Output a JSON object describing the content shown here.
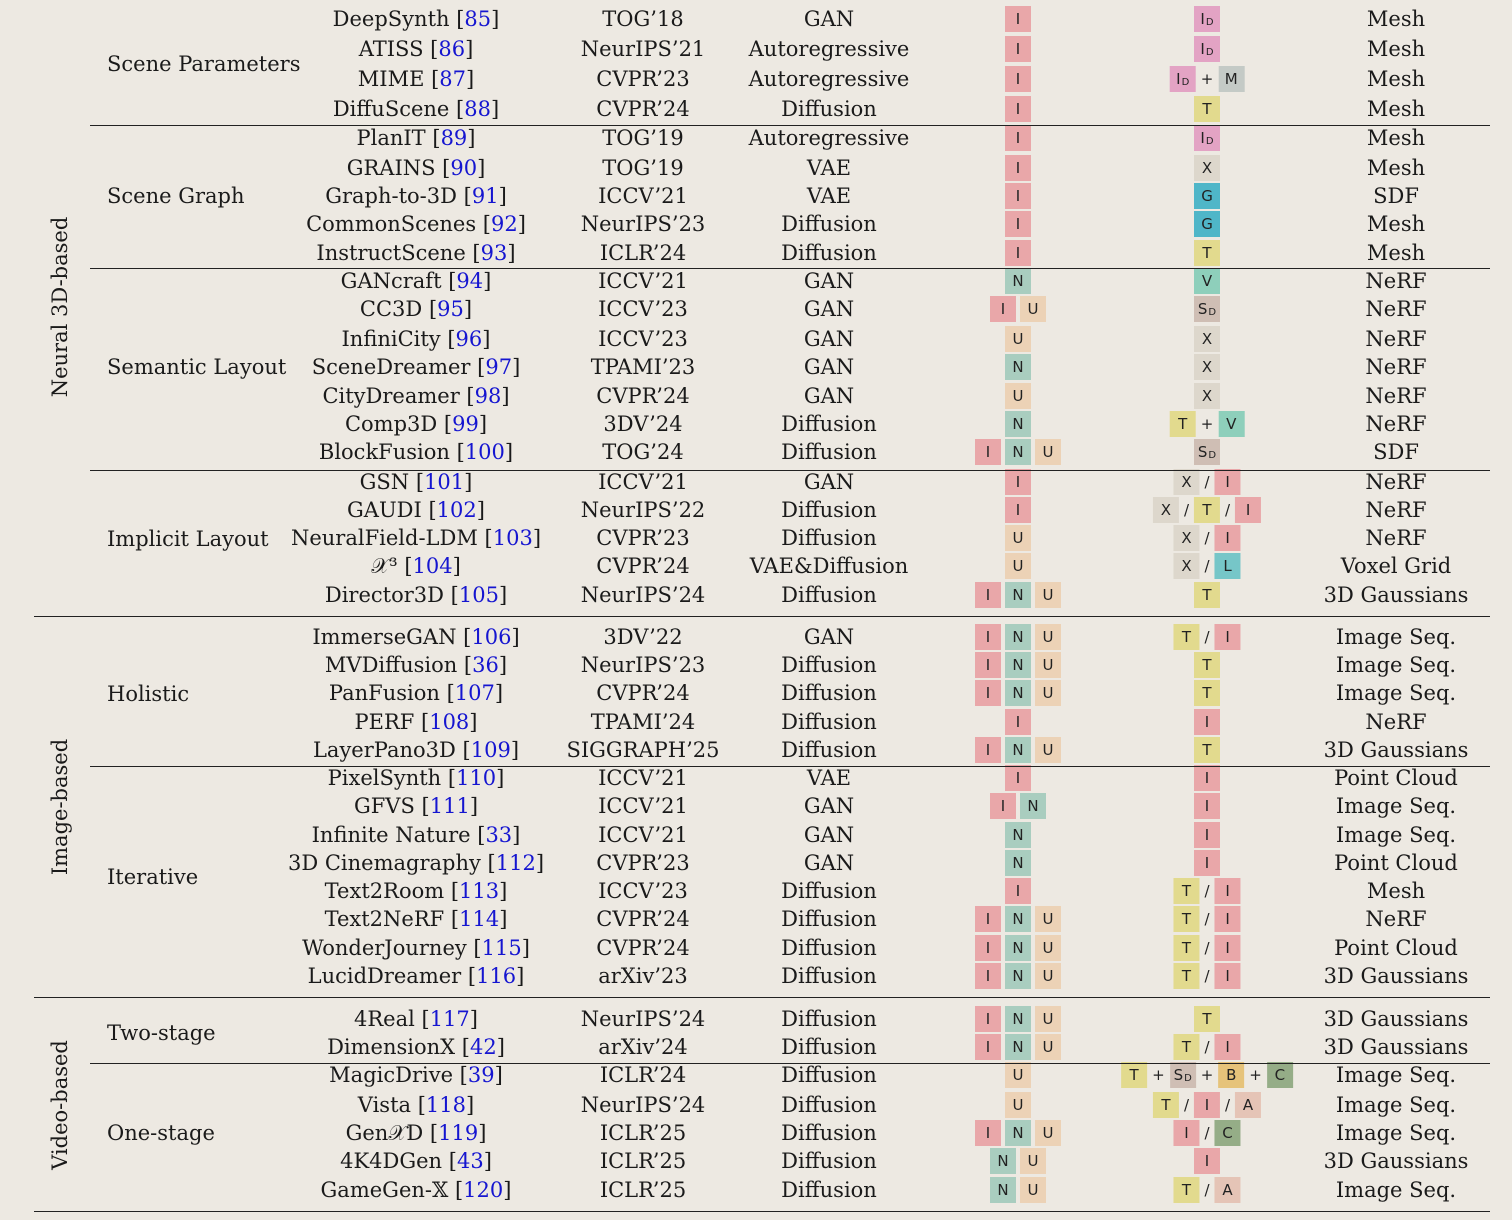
{
  "colors": {
    "I": "#e9a7a9",
    "N": "#a9cdbf",
    "U": "#ecd2b6",
    "ID": "#e3a3c4",
    "M": "#c4cac6",
    "T": "#e2da8e",
    "X": "#ddd7cc",
    "G": "#4fb6c8",
    "V": "#8ecfbb",
    "SD": "#cfbeb4",
    "L": "#76c6c8",
    "B": "#e6c37a",
    "C": "#95ad87",
    "A": "#e5c4b6"
  },
  "groups": [
    {
      "label": "Neural 3D-based",
      "subgroups": [
        {
          "label": "Scene Parameters",
          "rows": [
            {
              "method": "DeepSynth",
              "ref": "85",
              "venue": "TOG’18",
              "model": "GAN",
              "inputs": [
                "I"
              ],
              "cond": [
                "ID"
              ],
              "rep": "Mesh"
            },
            {
              "method": "ATISS",
              "ref": "86",
              "venue": "NeurIPS’21",
              "model": "Autoregressive",
              "inputs": [
                "I"
              ],
              "cond": [
                "ID"
              ],
              "rep": "Mesh"
            },
            {
              "method": "MIME",
              "ref": "87",
              "venue": "CVPR’23",
              "model": "Autoregressive",
              "inputs": [
                "I"
              ],
              "cond": [
                "ID",
                "+",
                "M"
              ],
              "rep": "Mesh"
            },
            {
              "method": "DiffuScene",
              "ref": "88",
              "venue": "CVPR’24",
              "model": "Diffusion",
              "inputs": [
                "I"
              ],
              "cond": [
                "T"
              ],
              "rep": "Mesh"
            }
          ]
        },
        {
          "label": "Scene Graph",
          "rows": [
            {
              "method": "PlanIT",
              "ref": "89",
              "venue": "TOG’19",
              "model": "Autoregressive",
              "inputs": [
                "I"
              ],
              "cond": [
                "ID"
              ],
              "rep": "Mesh"
            },
            {
              "method": "GRAINS",
              "ref": "90",
              "venue": "TOG’19",
              "model": "VAE",
              "inputs": [
                "I"
              ],
              "cond": [
                "X"
              ],
              "rep": "Mesh"
            },
            {
              "method": "Graph-to-3D",
              "ref": "91",
              "venue": "ICCV’21",
              "model": "VAE",
              "inputs": [
                "I"
              ],
              "cond": [
                "G"
              ],
              "rep": "SDF"
            },
            {
              "method": "CommonScenes",
              "ref": "92",
              "venue": "NeurIPS’23",
              "model": "Diffusion",
              "inputs": [
                "I"
              ],
              "cond": [
                "G"
              ],
              "rep": "Mesh"
            },
            {
              "method": "InstructScene",
              "ref": "93",
              "venue": "ICLR’24",
              "model": "Diffusion",
              "inputs": [
                "I"
              ],
              "cond": [
                "T"
              ],
              "rep": "Mesh"
            }
          ]
        },
        {
          "label": "Semantic Layout",
          "rows": [
            {
              "method": "GANcraft",
              "ref": "94",
              "venue": "ICCV’21",
              "model": "GAN",
              "inputs": [
                "N"
              ],
              "cond": [
                "V"
              ],
              "rep": "NeRF"
            },
            {
              "method": "CC3D",
              "ref": "95",
              "venue": "ICCV’23",
              "model": "GAN",
              "inputs": [
                "I",
                "U"
              ],
              "cond": [
                "SD"
              ],
              "rep": "NeRF"
            },
            {
              "method": "InfiniCity",
              "ref": "96",
              "venue": "ICCV’23",
              "model": "GAN",
              "inputs": [
                "U"
              ],
              "cond": [
                "X"
              ],
              "rep": "NeRF"
            },
            {
              "method": "SceneDreamer",
              "ref": "97",
              "venue": "TPAMI’23",
              "model": "GAN",
              "inputs": [
                "N"
              ],
              "cond": [
                "X"
              ],
              "rep": "NeRF"
            },
            {
              "method": "CityDreamer",
              "ref": "98",
              "venue": "CVPR’24",
              "model": "GAN",
              "inputs": [
                "U"
              ],
              "cond": [
                "X"
              ],
              "rep": "NeRF"
            },
            {
              "method": "Comp3D",
              "ref": "99",
              "venue": "3DV’24",
              "model": "Diffusion",
              "inputs": [
                "N"
              ],
              "cond": [
                "T",
                "+",
                "V"
              ],
              "rep": "NeRF"
            },
            {
              "method": "BlockFusion",
              "ref": "100",
              "venue": "TOG’24",
              "model": "Diffusion",
              "inputs": [
                "I",
                "N",
                "U"
              ],
              "cond": [
                "SD"
              ],
              "rep": "SDF"
            }
          ]
        },
        {
          "label": "Implicit Layout",
          "rows": [
            {
              "method": "GSN",
              "ref": "101",
              "venue": "ICCV’21",
              "model": "GAN",
              "inputs": [
                "I"
              ],
              "cond": [
                "X",
                "/",
                "I"
              ],
              "rep": "NeRF"
            },
            {
              "method": "GAUDI",
              "ref": "102",
              "venue": "NeurIPS’22",
              "model": "Diffusion",
              "inputs": [
                "I"
              ],
              "cond": [
                "X",
                "/",
                "T",
                "/",
                "I"
              ],
              "rep": "NeRF"
            },
            {
              "method": "NeuralField-LDM",
              "ref": "103",
              "venue": "CVPR’23",
              "model": "Diffusion",
              "inputs": [
                "U"
              ],
              "cond": [
                "X",
                "/",
                "I"
              ],
              "rep": "NeRF"
            },
            {
              "method": "𝒳³",
              "ref": "104",
              "venue": "CVPR’24",
              "model": "VAE&Diffusion",
              "inputs": [
                "U"
              ],
              "cond": [
                "X",
                "/",
                "L"
              ],
              "rep": "Voxel Grid"
            },
            {
              "method": "Director3D",
              "ref": "105",
              "venue": "NeurIPS’24",
              "model": "Diffusion",
              "inputs": [
                "I",
                "N",
                "U"
              ],
              "cond": [
                "T"
              ],
              "rep": "3D Gaussians"
            }
          ]
        }
      ]
    },
    {
      "label": "Image-based",
      "subgroups": [
        {
          "label": "Holistic",
          "rows": [
            {
              "method": "ImmerseGAN",
              "ref": "106",
              "venue": "3DV’22",
              "model": "GAN",
              "inputs": [
                "I",
                "N",
                "U"
              ],
              "cond": [
                "T",
                "/",
                "I"
              ],
              "rep": "Image Seq."
            },
            {
              "method": "MVDiffusion",
              "ref": "36",
              "venue": "NeurIPS’23",
              "model": "Diffusion",
              "inputs": [
                "I",
                "N",
                "U"
              ],
              "cond": [
                "T"
              ],
              "rep": "Image Seq."
            },
            {
              "method": "PanFusion",
              "ref": "107",
              "venue": "CVPR’24",
              "model": "Diffusion",
              "inputs": [
                "I",
                "N",
                "U"
              ],
              "cond": [
                "T"
              ],
              "rep": "Image Seq."
            },
            {
              "method": "PERF",
              "ref": "108",
              "venue": "TPAMI’24",
              "model": "Diffusion",
              "inputs": [
                "I"
              ],
              "cond": [
                "I"
              ],
              "rep": "NeRF"
            },
            {
              "method": "LayerPano3D",
              "ref": "109",
              "venue": "SIGGRAPH’25",
              "model": "Diffusion",
              "inputs": [
                "I",
                "N",
                "U"
              ],
              "cond": [
                "T"
              ],
              "rep": "3D Gaussians"
            }
          ]
        },
        {
          "label": "Iterative",
          "rows": [
            {
              "method": "PixelSynth",
              "ref": "110",
              "venue": "ICCV’21",
              "model": "VAE",
              "inputs": [
                "I"
              ],
              "cond": [
                "I"
              ],
              "rep": "Point Cloud"
            },
            {
              "method": "GFVS",
              "ref": "111",
              "venue": "ICCV’21",
              "model": "GAN",
              "inputs": [
                "I",
                "N"
              ],
              "cond": [
                "I"
              ],
              "rep": "Image Seq."
            },
            {
              "method": "Infinite Nature",
              "ref": "33",
              "venue": "ICCV’21",
              "model": "GAN",
              "inputs": [
                "N"
              ],
              "cond": [
                "I"
              ],
              "rep": "Image Seq."
            },
            {
              "method": "3D Cinemagraphy",
              "ref": "112",
              "venue": "CVPR’23",
              "model": "GAN",
              "inputs": [
                "N"
              ],
              "cond": [
                "I"
              ],
              "rep": "Point Cloud"
            },
            {
              "method": "Text2Room",
              "ref": "113",
              "venue": "ICCV’23",
              "model": "Diffusion",
              "inputs": [
                "I"
              ],
              "cond": [
                "T",
                "/",
                "I"
              ],
              "rep": "Mesh"
            },
            {
              "method": "Text2NeRF",
              "ref": "114",
              "venue": "CVPR’24",
              "model": "Diffusion",
              "inputs": [
                "I",
                "N",
                "U"
              ],
              "cond": [
                "T",
                "/",
                "I"
              ],
              "rep": "NeRF"
            },
            {
              "method": "WonderJourney",
              "ref": "115",
              "venue": "CVPR’24",
              "model": "Diffusion",
              "inputs": [
                "I",
                "N",
                "U"
              ],
              "cond": [
                "T",
                "/",
                "I"
              ],
              "rep": "Point Cloud"
            },
            {
              "method": "LucidDreamer",
              "ref": "116",
              "venue": "arXiv’23",
              "model": "Diffusion",
              "inputs": [
                "I",
                "N",
                "U"
              ],
              "cond": [
                "T",
                "/",
                "I"
              ],
              "rep": "3D Gaussians"
            }
          ]
        }
      ]
    },
    {
      "label": "Video-based",
      "subgroups": [
        {
          "label": "Two-stage",
          "rows": [
            {
              "method": "4Real",
              "ref": "117",
              "venue": "NeurIPS’24",
              "model": "Diffusion",
              "inputs": [
                "I",
                "N",
                "U"
              ],
              "cond": [
                "T"
              ],
              "rep": "3D Gaussians"
            },
            {
              "method": "DimensionX",
              "ref": "42",
              "venue": "arXiv’24",
              "model": "Diffusion",
              "inputs": [
                "I",
                "N",
                "U"
              ],
              "cond": [
                "T",
                "/",
                "I"
              ],
              "rep": "3D Gaussians"
            }
          ]
        },
        {
          "label": "One-stage",
          "rows": [
            {
              "method": "MagicDrive",
              "ref": "39",
              "venue": "ICLR’24",
              "model": "Diffusion",
              "inputs": [
                "U"
              ],
              "cond": [
                "T",
                "+",
                "SD",
                "+",
                "B",
                "+",
                "C"
              ],
              "rep": "Image Seq."
            },
            {
              "method": "Vista",
              "ref": "118",
              "venue": "NeurIPS’24",
              "model": "Diffusion",
              "inputs": [
                "U"
              ],
              "cond": [
                "T",
                "/",
                "I",
                "/",
                "A"
              ],
              "rep": "Image Seq."
            },
            {
              "method": "Gen𝒳D",
              "ref": "119",
              "venue": "ICLR’25",
              "model": "Diffusion",
              "inputs": [
                "I",
                "N",
                "U"
              ],
              "cond": [
                "I",
                "/",
                "C"
              ],
              "rep": "Image Seq."
            },
            {
              "method": "4K4DGen",
              "ref": "43",
              "venue": "ICLR’25",
              "model": "Diffusion",
              "inputs": [
                "N",
                "U"
              ],
              "cond": [
                "I"
              ],
              "rep": "3D Gaussians"
            },
            {
              "method": "GameGen-𝕏",
              "ref": "120",
              "venue": "ICLR’25",
              "model": "Diffusion",
              "inputs": [
                "N",
                "U"
              ],
              "cond": [
                "T",
                "/",
                "A"
              ],
              "rep": "Image Seq."
            }
          ]
        }
      ]
    }
  ]
}
